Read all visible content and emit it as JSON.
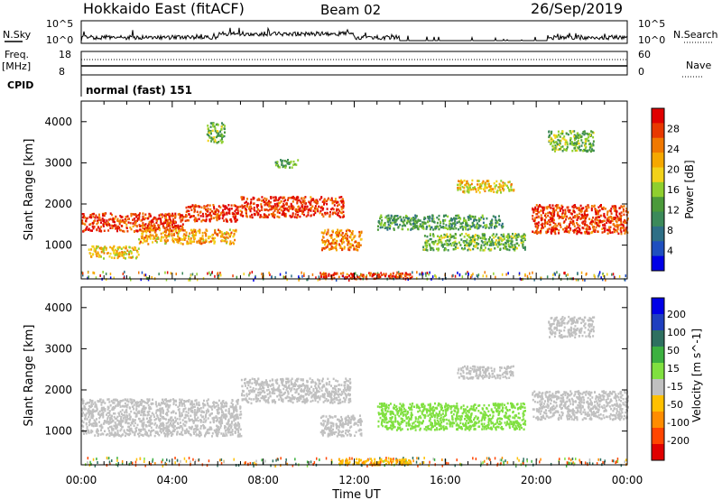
{
  "header": {
    "station": "Hokkaido East (fitACF)",
    "beam": "Beam 02",
    "date": "26/Sep/2019"
  },
  "top_panels": {
    "nsky_label": "N.Sky",
    "nsky_ticks": [
      "10^5",
      "10^0"
    ],
    "nsky_right_ticks": [
      "10^5",
      "10^0"
    ],
    "nsearch_label": "N.Search",
    "freq_label": "Freq.",
    "freq_unit": "[MHz]",
    "freq_ticks": [
      "18",
      "8"
    ],
    "nave_ticks": [
      "60",
      "0"
    ],
    "nave_label": "Nave",
    "cpid_label": "CPID",
    "cpid_text": "normal (fast) 151"
  },
  "colors": {
    "power_scale": [
      "#0000e6",
      "#1f4fbf",
      "#2e6f86",
      "#3c8a5a",
      "#4b9a3a",
      "#8fcf2e",
      "#f2d21a",
      "#f5a800",
      "#f07800",
      "#e83800",
      "#e00000"
    ],
    "velocity_scale": [
      "#e00000",
      "#ff4500",
      "#ff8c00",
      "#ffc000",
      "#c0c0c0",
      "#80e040",
      "#3cb040",
      "#2e7060",
      "#1f3fbf",
      "#0000e6"
    ]
  },
  "chart_data": [
    {
      "type": "heatmap",
      "title": "",
      "xlabel": "",
      "ylabel": "Slant Range [km]",
      "xlim": [
        "00:00",
        "24:00"
      ],
      "ylim": [
        180,
        4500
      ],
      "x_ticks": [
        "00:00",
        "04:00",
        "08:00",
        "12:00",
        "16:00",
        "20:00",
        "00:00"
      ],
      "y_ticks": [
        1000,
        2000,
        3000,
        4000
      ],
      "colorbar": {
        "label": "Power [dB]",
        "ticks": [
          4,
          8,
          12,
          16,
          20,
          24,
          28
        ],
        "range": [
          0,
          32
        ]
      },
      "bands": [
        {
          "t0": 0.0,
          "t1": 4.5,
          "r0": 1350,
          "r1": 1800,
          "value": 28
        },
        {
          "t0": 0.3,
          "t1": 2.5,
          "r0": 700,
          "r1": 1000,
          "value": 20
        },
        {
          "t0": 2.5,
          "t1": 6.8,
          "r0": 1050,
          "r1": 1400,
          "value": 22
        },
        {
          "t0": 4.5,
          "t1": 7.0,
          "r0": 1600,
          "r1": 2000,
          "value": 28
        },
        {
          "t0": 7.0,
          "t1": 11.5,
          "r0": 1700,
          "r1": 2200,
          "value": 28
        },
        {
          "t0": 10.5,
          "t1": 12.3,
          "r0": 900,
          "r1": 1400,
          "value": 24
        },
        {
          "t0": 13.0,
          "t1": 18.5,
          "r0": 1400,
          "r1": 1750,
          "value": 12
        },
        {
          "t0": 15.0,
          "t1": 19.5,
          "r0": 900,
          "r1": 1300,
          "value": 14
        },
        {
          "t0": 19.8,
          "t1": 24.0,
          "r0": 1300,
          "r1": 2000,
          "value": 28
        },
        {
          "t0": 20.5,
          "t1": 22.5,
          "r0": 3300,
          "r1": 3800,
          "value": 14
        },
        {
          "t0": 5.5,
          "t1": 6.3,
          "r0": 3500,
          "r1": 4000,
          "value": 14
        },
        {
          "t0": 8.5,
          "t1": 9.5,
          "r0": 2900,
          "r1": 3100,
          "value": 12
        },
        {
          "t0": 10.5,
          "t1": 14.5,
          "r0": 200,
          "r1": 350,
          "value": 28
        },
        {
          "t0": 16.5,
          "t1": 19.0,
          "r0": 2300,
          "r1": 2600,
          "value": 20
        }
      ]
    },
    {
      "type": "heatmap",
      "title": "",
      "xlabel": "Time UT",
      "ylabel": "Slant Range [km]",
      "xlim": [
        "00:00",
        "24:00"
      ],
      "ylim": [
        180,
        4500
      ],
      "x_ticks": [
        "00:00",
        "04:00",
        "08:00",
        "12:00",
        "16:00",
        "20:00",
        "00:00"
      ],
      "y_ticks": [
        1000,
        2000,
        3000,
        4000
      ],
      "colorbar": {
        "label": "Velocity [m s^-1]",
        "ticks": [
          200,
          100,
          50,
          15,
          -15,
          -50,
          -100,
          -200
        ],
        "range": [
          -250,
          250
        ]
      },
      "bands": [
        {
          "t0": 0.0,
          "t1": 7.0,
          "r0": 900,
          "r1": 1800,
          "value": 0
        },
        {
          "t0": 7.0,
          "t1": 11.8,
          "r0": 1700,
          "r1": 2300,
          "value": 0
        },
        {
          "t0": 10.5,
          "t1": 12.3,
          "r0": 900,
          "r1": 1400,
          "value": 0
        },
        {
          "t0": 13.0,
          "t1": 19.5,
          "r0": 1050,
          "r1": 1700,
          "value": 30
        },
        {
          "t0": 19.8,
          "t1": 24.0,
          "r0": 1300,
          "r1": 2000,
          "value": 0
        },
        {
          "t0": 20.5,
          "t1": 22.5,
          "r0": 3300,
          "r1": 3800,
          "value": 0
        },
        {
          "t0": 11.0,
          "t1": 14.5,
          "r0": 200,
          "r1": 350,
          "value": -40
        },
        {
          "t0": 16.5,
          "t1": 19.0,
          "r0": 2300,
          "r1": 2600,
          "value": 0
        }
      ]
    }
  ]
}
